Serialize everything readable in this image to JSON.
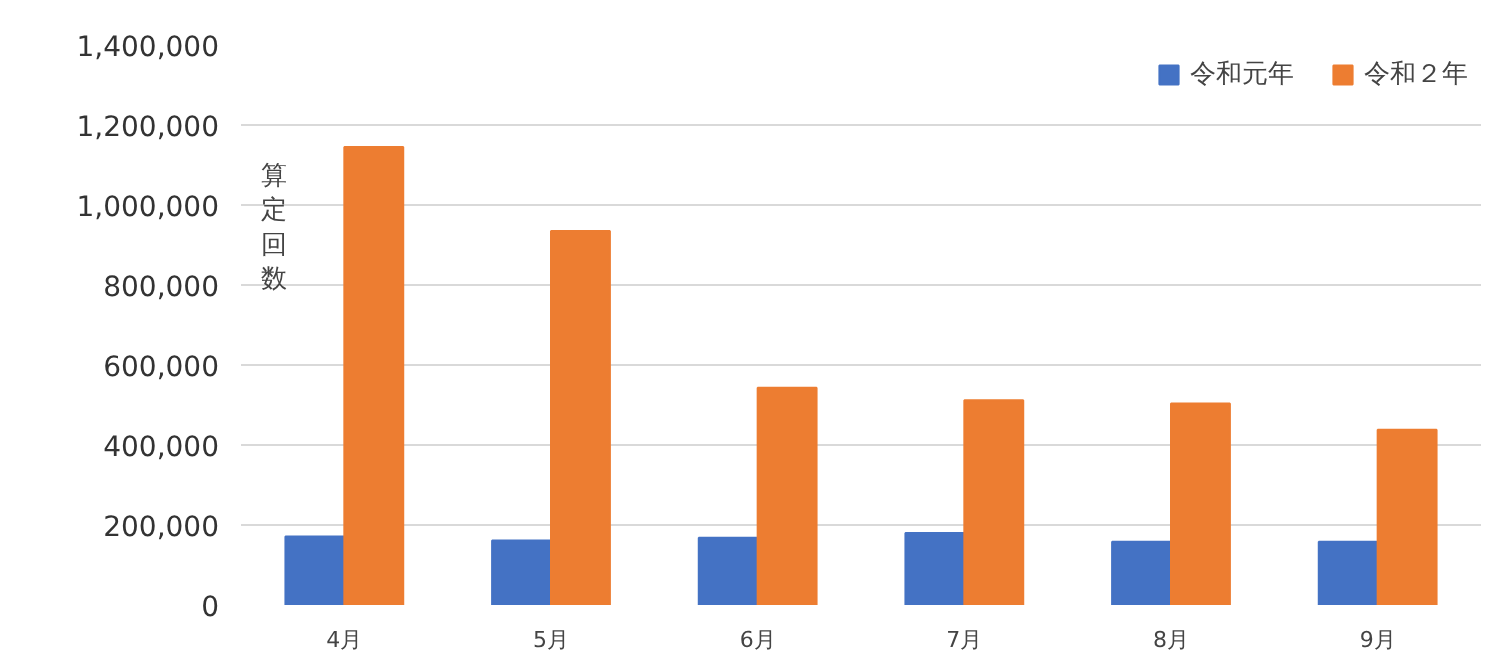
{
  "chart_data": {
    "type": "bar",
    "ylabel": "算定回数",
    "categories": [
      "4月",
      "5月",
      "6月",
      "7月",
      "8月",
      "9月"
    ],
    "series": [
      {
        "name": "令和元年",
        "color": "#4472c4",
        "values": [
          171000,
          161000,
          168000,
          180000,
          158000,
          158000
        ]
      },
      {
        "name": "令和２年",
        "color": "#ed7d31",
        "values": [
          1145000,
          935000,
          543000,
          512000,
          504000,
          438000
        ]
      }
    ],
    "ylim": [
      0,
      1400000
    ],
    "yticks": [
      {
        "value": 0,
        "label": "0"
      },
      {
        "value": 200000,
        "label": "200,000"
      },
      {
        "value": 400000,
        "label": "400,000"
      },
      {
        "value": 600000,
        "label": "600,000"
      },
      {
        "value": 800000,
        "label": "800,000"
      },
      {
        "value": 1000000,
        "label": "1,000,000"
      },
      {
        "value": 1200000,
        "label": "1,200,000"
      },
      {
        "value": 1400000,
        "label": "1,400,000"
      }
    ],
    "grid": "y",
    "legend": "top right"
  }
}
